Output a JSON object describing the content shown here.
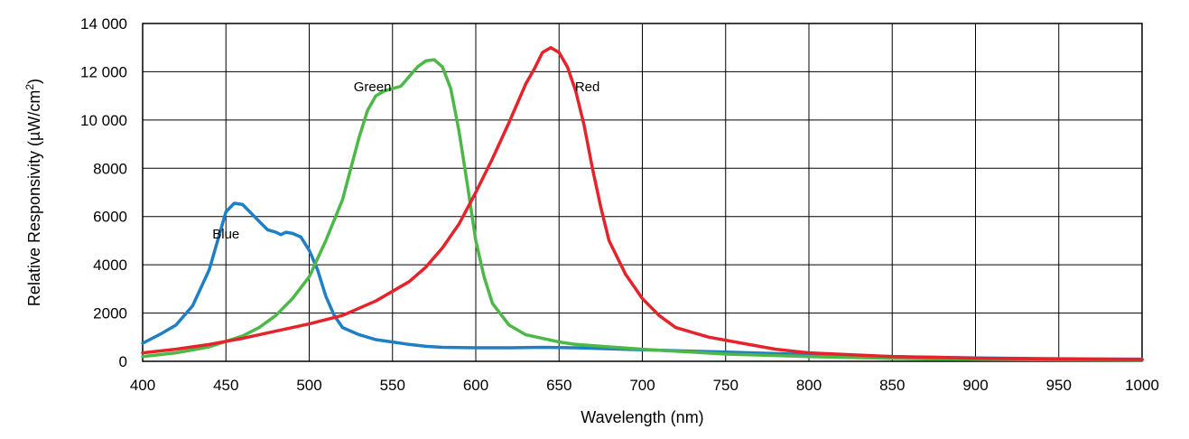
{
  "chart_data": {
    "type": "line",
    "xlabel": "Wavelength (nm)",
    "ylabel_main": "Relative Responsivity (µW/cm",
    "ylabel_sup": "2",
    "ylabel_end": ")",
    "xlim": [
      400,
      1000
    ],
    "ylim": [
      0,
      14000
    ],
    "grid": true,
    "x_ticks": [
      400,
      450,
      500,
      550,
      600,
      650,
      700,
      750,
      800,
      850,
      900,
      950,
      1000
    ],
    "x_tick_labels": [
      "400",
      "450",
      "500",
      "550",
      "600",
      "650",
      "700",
      "750",
      "800",
      "850",
      "900",
      "950",
      "1000"
    ],
    "y_ticks": [
      0,
      2000,
      4000,
      6000,
      8000,
      10000,
      12000,
      14000
    ],
    "y_tick_labels": [
      "0",
      "2000",
      "4000",
      "6000",
      "8000",
      "10 000",
      "12 000",
      "14 000"
    ],
    "series": [
      {
        "name": "Blue",
        "color": "#1f7fc4",
        "label_anchor": [
          450,
          5100
        ],
        "points": [
          [
            400,
            750
          ],
          [
            410,
            1100
          ],
          [
            420,
            1500
          ],
          [
            430,
            2300
          ],
          [
            440,
            3800
          ],
          [
            450,
            6200
          ],
          [
            455,
            6550
          ],
          [
            460,
            6500
          ],
          [
            465,
            6150
          ],
          [
            470,
            5800
          ],
          [
            475,
            5450
          ],
          [
            480,
            5350
          ],
          [
            483,
            5250
          ],
          [
            486,
            5350
          ],
          [
            490,
            5300
          ],
          [
            495,
            5150
          ],
          [
            500,
            4600
          ],
          [
            505,
            3800
          ],
          [
            510,
            2700
          ],
          [
            515,
            1900
          ],
          [
            520,
            1400
          ],
          [
            530,
            1100
          ],
          [
            540,
            900
          ],
          [
            550,
            800
          ],
          [
            560,
            700
          ],
          [
            570,
            620
          ],
          [
            580,
            580
          ],
          [
            600,
            560
          ],
          [
            620,
            560
          ],
          [
            640,
            580
          ],
          [
            660,
            560
          ],
          [
            700,
            480
          ],
          [
            750,
            380
          ],
          [
            800,
            280
          ],
          [
            850,
            200
          ],
          [
            900,
            140
          ],
          [
            950,
            110
          ],
          [
            1000,
            90
          ]
        ]
      },
      {
        "name": "Green",
        "color": "#4cb848",
        "label_anchor": [
          538,
          11200
        ],
        "points": [
          [
            400,
            200
          ],
          [
            420,
            350
          ],
          [
            440,
            600
          ],
          [
            460,
            1050
          ],
          [
            470,
            1400
          ],
          [
            480,
            1900
          ],
          [
            490,
            2600
          ],
          [
            500,
            3500
          ],
          [
            510,
            5000
          ],
          [
            520,
            6700
          ],
          [
            525,
            8000
          ],
          [
            530,
            9300
          ],
          [
            535,
            10400
          ],
          [
            540,
            11000
          ],
          [
            545,
            11200
          ],
          [
            550,
            11300
          ],
          [
            555,
            11400
          ],
          [
            560,
            11800
          ],
          [
            565,
            12200
          ],
          [
            570,
            12450
          ],
          [
            575,
            12500
          ],
          [
            580,
            12200
          ],
          [
            585,
            11300
          ],
          [
            590,
            9500
          ],
          [
            595,
            7300
          ],
          [
            600,
            5000
          ],
          [
            605,
            3500
          ],
          [
            610,
            2400
          ],
          [
            620,
            1500
          ],
          [
            630,
            1100
          ],
          [
            640,
            950
          ],
          [
            650,
            800
          ],
          [
            660,
            700
          ],
          [
            680,
            600
          ],
          [
            700,
            500
          ],
          [
            750,
            300
          ],
          [
            800,
            200
          ],
          [
            850,
            120
          ],
          [
            900,
            80
          ],
          [
            950,
            60
          ],
          [
            1000,
            50
          ]
        ]
      },
      {
        "name": "Red",
        "color": "#e5232b",
        "label_anchor": [
          667,
          11200
        ],
        "points": [
          [
            400,
            350
          ],
          [
            420,
            500
          ],
          [
            440,
            700
          ],
          [
            460,
            950
          ],
          [
            480,
            1250
          ],
          [
            500,
            1550
          ],
          [
            520,
            1900
          ],
          [
            540,
            2500
          ],
          [
            560,
            3300
          ],
          [
            570,
            3900
          ],
          [
            580,
            4700
          ],
          [
            590,
            5700
          ],
          [
            600,
            7000
          ],
          [
            610,
            8400
          ],
          [
            620,
            9900
          ],
          [
            630,
            11500
          ],
          [
            635,
            12100
          ],
          [
            640,
            12800
          ],
          [
            645,
            13000
          ],
          [
            650,
            12800
          ],
          [
            655,
            12200
          ],
          [
            660,
            11200
          ],
          [
            665,
            9800
          ],
          [
            670,
            8000
          ],
          [
            675,
            6400
          ],
          [
            680,
            5000
          ],
          [
            690,
            3600
          ],
          [
            700,
            2600
          ],
          [
            710,
            1900
          ],
          [
            720,
            1400
          ],
          [
            740,
            1000
          ],
          [
            760,
            750
          ],
          [
            780,
            500
          ],
          [
            800,
            350
          ],
          [
            850,
            200
          ],
          [
            900,
            130
          ],
          [
            950,
            90
          ],
          [
            1000,
            70
          ]
        ]
      }
    ]
  }
}
